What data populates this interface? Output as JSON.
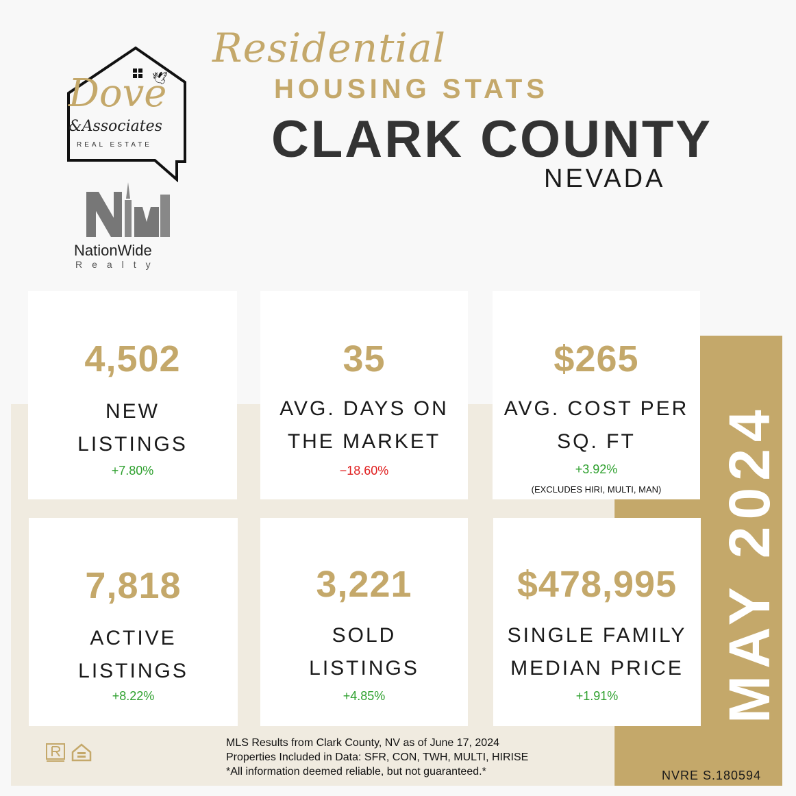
{
  "header": {
    "script_title": "Residential",
    "subtitle": "HOUSING STATS",
    "county": "CLARK COUNTY",
    "state": "NEVADA"
  },
  "logos": {
    "dove_script": "Dove",
    "dove_associates": "&Associates",
    "dove_real_estate": "REAL ESTATE",
    "nationwide_name": "NationWide",
    "nationwide_sub": "Realty"
  },
  "stats": [
    {
      "value": "4,502",
      "label_line1": "NEW",
      "label_line2": "LISTINGS",
      "change": "+7.80%",
      "note": ""
    },
    {
      "value": "35",
      "label_line1": "AVG. DAYS ON",
      "label_line2": "THE MARKET",
      "change": "−18.60%",
      "note": ""
    },
    {
      "value": "$265",
      "label_line1": "AVG. COST PER",
      "label_line2": "SQ. FT",
      "change": "+3.92%",
      "note": "(EXCLUDES HIRI, MULTI, MAN)"
    },
    {
      "value": "7,818",
      "label_line1": "ACTIVE",
      "label_line2": "LISTINGS",
      "change": "+8.22%",
      "note": ""
    },
    {
      "value": "3,221",
      "label_line1": "SOLD",
      "label_line2": "LISTINGS",
      "change": "+4.85%",
      "note": ""
    },
    {
      "value": "$478,995",
      "label_line1": "SINGLE FAMILY",
      "label_line2": "MEDIAN PRICE",
      "change": "+1.91%",
      "note": ""
    }
  ],
  "period": "MAY 2024",
  "license": "NVRE S.180594",
  "disclaimer": [
    "MLS Results from Clark County, NV as of June 17, 2024",
    "Properties Included in Data: SFR, CON, TWH, MULTI, HIRISE",
    "*All information deemed reliable, but not guaranteed.*"
  ],
  "colors": {
    "gold": "#c4a86a",
    "positive": "#2ea02e",
    "negative": "#e02020",
    "beige": "#f0ebe0"
  },
  "icons": [
    "realtor-icon",
    "equal-housing-icon",
    "dove-bird-icon"
  ]
}
